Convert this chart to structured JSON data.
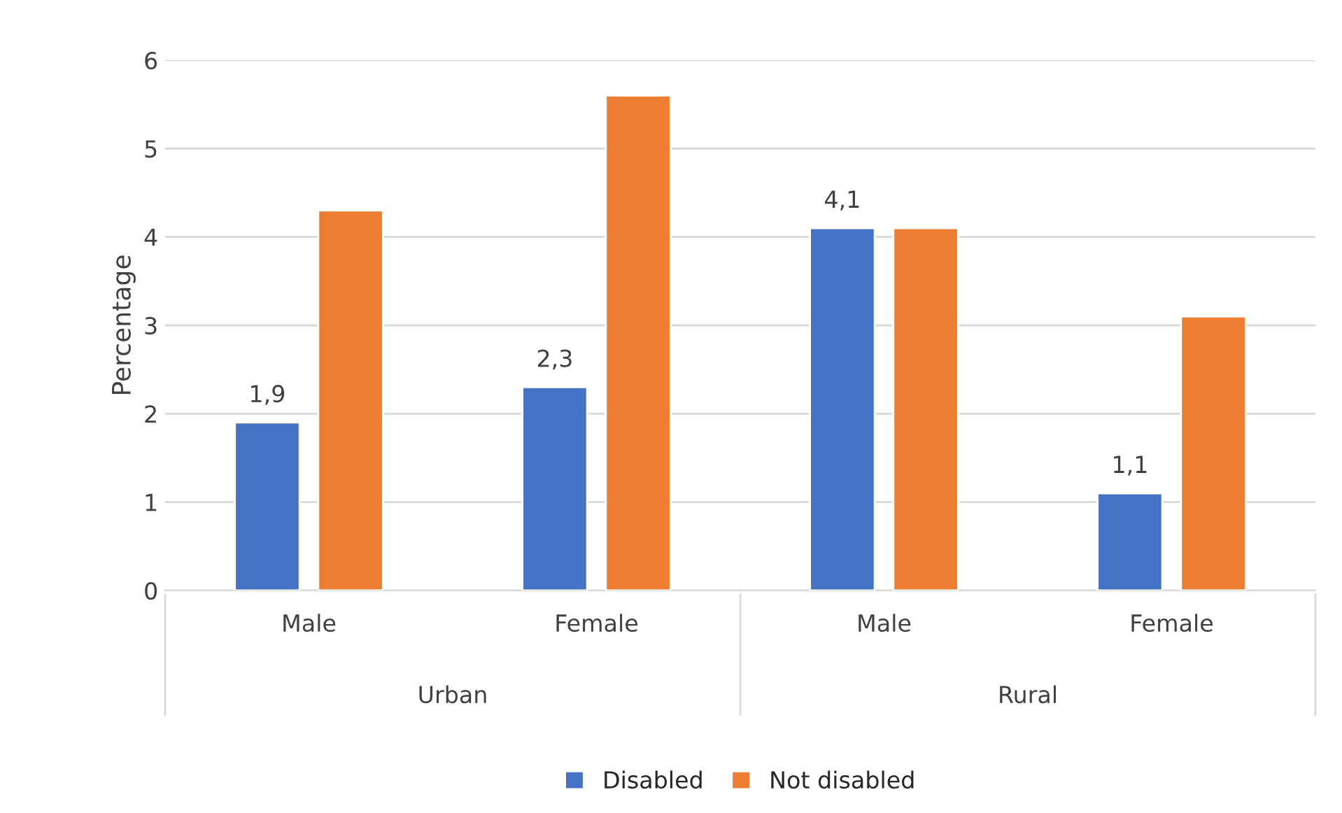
{
  "chart_data": {
    "type": "bar",
    "ylabel": "Percentage",
    "categories": [
      "Male",
      "Female",
      "Male",
      "Female"
    ],
    "series": [
      {
        "name": "Disabled",
        "color": "#4472c4",
        "values": [
          1.9,
          2.3,
          4.1,
          1.1
        ],
        "value_labels": [
          "1,9",
          "2,3",
          "4,1",
          "1,1"
        ]
      },
      {
        "name": "Not disabled",
        "color": "#ed7d31",
        "values": [
          4.3,
          5.6,
          4.1,
          3.1
        ]
      }
    ],
    "ylim": [
      0,
      6
    ],
    "yticks": [
      0,
      1,
      2,
      3,
      4,
      5,
      6
    ],
    "grid": "y",
    "legend": "bottom",
    "annotations": [
      "Urban",
      "Rural"
    ]
  }
}
